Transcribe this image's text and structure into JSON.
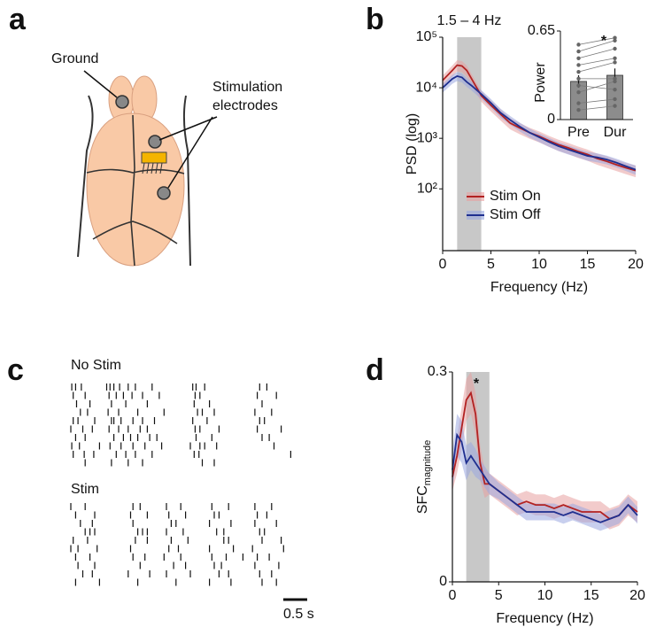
{
  "panels": [
    "a",
    "b",
    "c",
    "d"
  ],
  "diagram": {
    "ground": "Ground",
    "stimulation": "Stimulation electrodes"
  },
  "chart_data": [
    {
      "type": "line",
      "ylabel": "PSD (log)",
      "xlabel": "Frequency (Hz)",
      "log_y": true,
      "xlim": [
        0,
        20
      ],
      "xticks": [
        0,
        5,
        10,
        15,
        20
      ],
      "ylim": [
        6,
        100000
      ],
      "yticks": [
        {
          "value": 100,
          "label": "10²"
        },
        {
          "value": 1000,
          "label": "10³"
        },
        {
          "value": 10000,
          "label": "10⁴"
        },
        {
          "value": 100000,
          "label": "10⁵"
        }
      ],
      "highlight": {
        "range": [
          1.5,
          4
        ],
        "label": "1.5 – 4 Hz"
      },
      "legend": "lower left",
      "x": [
        0,
        1,
        1.5,
        2,
        2.5,
        3,
        4,
        5,
        6,
        7,
        8,
        9,
        10,
        11,
        12,
        13,
        14,
        15,
        16,
        17,
        18,
        19,
        20
      ],
      "series": [
        {
          "name": "Stim On",
          "color": "#b22222",
          "band_color": "#e8a0a0",
          "values": [
            14000,
            22000,
            28000,
            27000,
            22000,
            15000,
            7000,
            4500,
            3000,
            2000,
            1600,
            1300,
            1100,
            900,
            750,
            650,
            550,
            480,
            400,
            350,
            300,
            260,
            230
          ],
          "error": [
            3500,
            5500,
            7000,
            6700,
            5500,
            3700,
            1700,
            1100,
            750,
            500,
            400,
            320,
            270,
            220,
            190,
            160,
            140,
            120,
            100,
            90,
            75,
            65,
            60
          ]
        },
        {
          "name": "Stim Off",
          "color": "#1f2f8f",
          "band_color": "#9aa8e0",
          "values": [
            10000,
            15000,
            17000,
            16000,
            13000,
            11000,
            7500,
            5000,
            3200,
            2300,
            1700,
            1300,
            1050,
            850,
            700,
            600,
            520,
            450,
            420,
            380,
            330,
            280,
            240
          ],
          "error": [
            2000,
            3000,
            3400,
            3200,
            2600,
            2200,
            1500,
            1000,
            640,
            460,
            340,
            260,
            210,
            170,
            140,
            120,
            100,
            90,
            85,
            75,
            65,
            55,
            50
          ]
        }
      ]
    },
    {
      "type": "bar",
      "ylabel": "Power",
      "annotation": "*",
      "categories": [
        "Pre",
        "Dur"
      ],
      "values": [
        0.28,
        0.325
      ],
      "error": [
        0.045,
        0.05
      ],
      "color": "#8c8c8c",
      "ylim": [
        0,
        0.65
      ],
      "yticks": [
        0,
        0.65
      ],
      "pairs": {
        "pre": [
          0.55,
          0.5,
          0.45,
          0.4,
          0.35,
          0.3,
          0.25,
          0.2,
          0.12,
          0.07
        ],
        "dur": [
          0.6,
          0.58,
          0.52,
          0.45,
          0.42,
          0.3,
          0.22,
          0.28,
          0.15,
          0.1
        ]
      }
    },
    {
      "type": "raster",
      "scale_bar": {
        "value": 0.5,
        "label": "0.5 s"
      },
      "groups": [
        {
          "name": "No Stim",
          "trials": [
            [
              0.02,
              0.1,
              0.22,
              0.75,
              0.82,
              0.9,
              1.02,
              1.2,
              1.35,
              1.7,
              2.55,
              2.62,
              2.8,
              3.95,
              4.1
            ],
            [
              0.05,
              0.3,
              0.8,
              0.95,
              1.1,
              1.28,
              1.5,
              1.85,
              2.6,
              2.7,
              3.9,
              4.3
            ],
            [
              0.12,
              0.4,
              0.85,
              1.15,
              1.6,
              2.58,
              2.9,
              4.0
            ],
            [
              0.2,
              0.35,
              0.78,
              1.0,
              1.4,
              1.95,
              2.65,
              2.75,
              3.0,
              3.85,
              4.2
            ],
            [
              0.05,
              0.15,
              0.5,
              0.85,
              0.9,
              1.05,
              1.3,
              1.5,
              1.75,
              2.55,
              2.85,
              3.95,
              4.05
            ],
            [
              0.0,
              0.25,
              0.45,
              0.8,
              1.0,
              1.2,
              1.45,
              1.6,
              2.6,
              2.7,
              3.1,
              3.9,
              4.4
            ],
            [
              0.1,
              0.3,
              0.9,
              1.1,
              1.25,
              1.4,
              1.65,
              1.8,
              2.62,
              2.95,
              4.0,
              4.15
            ],
            [
              0.02,
              0.18,
              0.6,
              0.82,
              1.05,
              1.3,
              1.55,
              1.9,
              2.5,
              2.7,
              2.8,
              3.05,
              4.25
            ],
            [
              0.05,
              0.28,
              0.48,
              0.95,
              1.15,
              1.35,
              1.7,
              2.58,
              2.68,
              4.6
            ],
            [
              0.3,
              0.85,
              1.2,
              1.5,
              2.75,
              3.0
            ]
          ]
        },
        {
          "name": "Stim",
          "trials": [
            [
              0.0,
              0.3,
              1.3,
              1.45,
              2.0,
              2.3,
              2.95,
              3.3,
              3.85,
              4.2
            ],
            [
              0.1,
              0.5,
              1.25,
              1.6,
              2.05,
              2.4,
              3.0,
              3.1,
              3.9,
              4.1
            ],
            [
              0.2,
              0.45,
              1.3,
              2.1,
              2.2,
              2.9,
              3.35,
              3.85,
              4.3
            ],
            [
              0.3,
              0.4,
              0.5,
              1.4,
              1.5,
              1.6,
              2.0,
              2.35,
              3.05,
              3.2,
              3.95,
              4.05
            ],
            [
              0.05,
              0.35,
              1.35,
              1.6,
              2.1,
              2.45,
              3.2,
              3.3,
              4.0,
              4.4
            ],
            [
              0.0,
              0.15,
              0.55,
              1.25,
              2.05,
              2.25,
              2.9,
              3.4,
              3.8,
              4.45
            ],
            [
              0.1,
              0.4,
              1.3,
              1.55,
              1.95,
              2.3,
              2.95,
              3.25,
              3.6,
              3.9,
              4.15
            ],
            [
              0.15,
              0.5,
              1.45,
              2.15,
              2.4,
              3.0,
              3.15,
              3.85,
              4.35
            ],
            [
              0.25,
              0.45,
              1.2,
              1.65,
              2.0,
              2.5,
              3.1,
              3.3,
              3.95,
              4.2
            ],
            [
              0.1,
              0.6,
              1.4,
              2.2,
              2.9,
              3.35,
              4.0,
              4.3
            ]
          ]
        }
      ]
    },
    {
      "type": "line",
      "ylabel": "SFC",
      "ylabel_subscript": "magnitude",
      "xlabel": "Frequency (Hz)",
      "annotation": "*",
      "xlim": [
        0,
        20
      ],
      "xticks": [
        0,
        5,
        10,
        15,
        20
      ],
      "ylim": [
        0,
        0.3
      ],
      "yticks": [
        0,
        0.3
      ],
      "highlight": {
        "range": [
          1.5,
          4
        ]
      },
      "x": [
        0,
        0.5,
        1,
        1.5,
        2,
        2.5,
        3,
        3.5,
        4,
        5,
        6,
        7,
        8,
        9,
        10,
        11,
        12,
        13,
        14,
        15,
        16,
        17,
        18,
        19,
        20
      ],
      "series": [
        {
          "color": "#b22222",
          "band_color": "#e8a0a0",
          "values": [
            0.15,
            0.18,
            0.22,
            0.26,
            0.27,
            0.24,
            0.17,
            0.14,
            0.14,
            0.13,
            0.12,
            0.11,
            0.115,
            0.11,
            0.11,
            0.105,
            0.11,
            0.105,
            0.1,
            0.1,
            0.1,
            0.09,
            0.095,
            0.11,
            0.1
          ],
          "error": [
            0.02,
            0.025,
            0.03,
            0.03,
            0.03,
            0.03,
            0.025,
            0.02,
            0.015,
            0.015,
            0.015,
            0.015,
            0.015,
            0.015,
            0.015,
            0.015,
            0.015,
            0.015,
            0.015,
            0.015,
            0.015,
            0.015,
            0.015,
            0.015,
            0.015
          ]
        },
        {
          "color": "#1f2f8f",
          "band_color": "#9aa8e0",
          "values": [
            0.16,
            0.21,
            0.2,
            0.17,
            0.18,
            0.17,
            0.16,
            0.15,
            0.14,
            0.13,
            0.12,
            0.11,
            0.1,
            0.1,
            0.1,
            0.1,
            0.095,
            0.1,
            0.095,
            0.09,
            0.085,
            0.09,
            0.095,
            0.11,
            0.095
          ],
          "error": [
            0.025,
            0.03,
            0.03,
            0.025,
            0.02,
            0.02,
            0.015,
            0.015,
            0.015,
            0.012,
            0.012,
            0.012,
            0.012,
            0.012,
            0.012,
            0.012,
            0.012,
            0.012,
            0.012,
            0.012,
            0.012,
            0.012,
            0.012,
            0.012,
            0.012
          ]
        }
      ]
    }
  ]
}
